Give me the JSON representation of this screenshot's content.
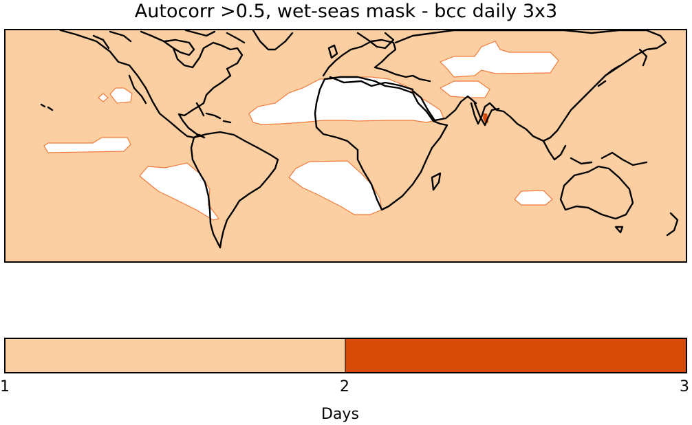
{
  "title": "Autocorr >0.5, wet-seas mask - bcc daily 3x3",
  "colors": {
    "background_fill": "#fbcfa1",
    "masked_fill": "#ffffff",
    "mask_outline": "#f07a3a",
    "high_fill": "#d84a08",
    "coast": "#000000"
  },
  "colorbar": {
    "label": "Days",
    "ticks": [
      "1",
      "2",
      "3"
    ],
    "tick_values": [
      1,
      2,
      3
    ],
    "segments": [
      {
        "from": 1,
        "to": 2,
        "color": "#fbcfa1"
      },
      {
        "from": 2,
        "to": 3,
        "color": "#d84a08"
      }
    ]
  }
}
